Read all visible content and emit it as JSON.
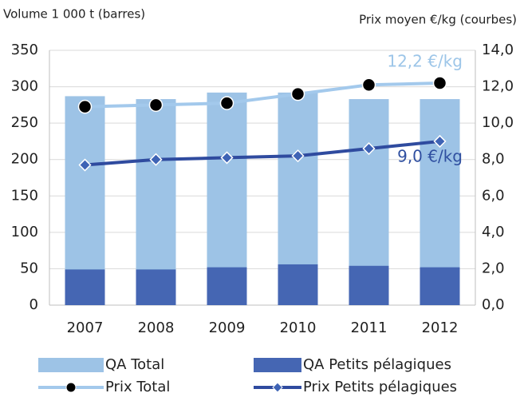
{
  "chart_data": {
    "type": "bar",
    "y_label": "Volume 1 000 t (barres)",
    "y2_label": "Prix moyen €/kg (courbes)",
    "categories": [
      "2007",
      "2008",
      "2009",
      "2010",
      "2011",
      "2012"
    ],
    "series": [
      {
        "name": "QA Total",
        "type": "bar",
        "color": "#9dc3e6",
        "values": [
          287,
          283,
          292,
          292,
          283,
          283
        ]
      },
      {
        "name": "QA Petits pélagiques",
        "type": "bar",
        "color": "#4566b3",
        "values": [
          49,
          49,
          52,
          56,
          54,
          52
        ]
      },
      {
        "name": "Prix Total",
        "type": "line",
        "axis": "y2",
        "color": "#a3c9ec",
        "marker": "circle",
        "marker_color": "#000000",
        "values": [
          10.9,
          11.0,
          11.1,
          11.6,
          12.1,
          12.2
        ]
      },
      {
        "name": "Prix Petits pélagiques",
        "type": "line",
        "axis": "y2",
        "color": "#2f4b9f",
        "marker": "diamond",
        "marker_color": "#3e63b5",
        "values": [
          7.7,
          8.0,
          8.1,
          8.2,
          8.6,
          9.0
        ]
      }
    ],
    "annotations": [
      {
        "text": "12,2 €/kg",
        "series": 2,
        "color": "#9cc5e8"
      },
      {
        "text": "9,0 €/kg",
        "series": 3,
        "color": "#2f4fa0"
      }
    ],
    "ylim": [
      0,
      350
    ],
    "yticks": [
      0,
      50,
      100,
      150,
      200,
      250,
      300,
      350
    ],
    "y2lim": [
      0,
      14
    ],
    "y2ticks": [
      {
        "value": 0,
        "label": "0,0"
      },
      {
        "value": 2,
        "label": "2,0"
      },
      {
        "value": 4,
        "label": "4,0"
      },
      {
        "value": 6,
        "label": "6,0"
      },
      {
        "value": 8,
        "label": "8,0"
      },
      {
        "value": 10,
        "label": "10,0"
      },
      {
        "value": 12,
        "label": "12,0"
      },
      {
        "value": 14,
        "label": "14,0"
      }
    ],
    "grid": true
  }
}
